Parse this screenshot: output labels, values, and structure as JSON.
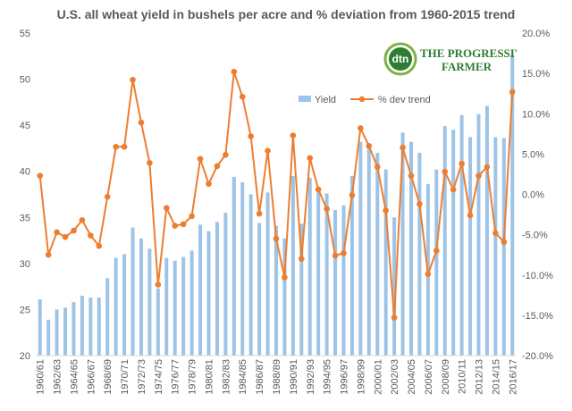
{
  "chart_data": {
    "type": "bar+line",
    "title": "U.S. all wheat yield in bushels per acre and % deviation from 1960-2015 trend",
    "categories": [
      "1960/61",
      "1961/62",
      "1962/63",
      "1963/64",
      "1964/65",
      "1965/66",
      "1966/67",
      "1967/68",
      "1968/69",
      "1969/70",
      "1970/71",
      "1971/72",
      "1972/73",
      "1973/74",
      "1974/75",
      "1975/76",
      "1976/77",
      "1977/78",
      "1978/79",
      "1979/80",
      "1980/81",
      "1981/82",
      "1982/83",
      "1983/84",
      "1984/85",
      "1985/86",
      "1986/87",
      "1987/88",
      "1988/89",
      "1989/90",
      "1990/91",
      "1991/92",
      "1992/93",
      "1993/94",
      "1994/95",
      "1995/96",
      "1996/97",
      "1997/98",
      "1998/99",
      "1999/00",
      "2000/01",
      "2001/02",
      "2002/03",
      "2003/04",
      "2004/05",
      "2005/06",
      "2006/07",
      "2007/08",
      "2008/09",
      "2009/10",
      "2010/11",
      "2011/12",
      "2012/13",
      "2013/14",
      "2014/15",
      "2015/16",
      "2016/17"
    ],
    "x_tick_labels": [
      "1960/61",
      "1962/63",
      "1964/65",
      "1966/67",
      "1968/69",
      "1970/71",
      "1972/73",
      "1974/75",
      "1976/77",
      "1978/79",
      "1980/81",
      "1982/83",
      "1984/85",
      "1986/87",
      "1988/89",
      "1990/91",
      "1992/93",
      "1994/95",
      "1996/97",
      "1998/99",
      "2000/01",
      "2002/03",
      "2004/05",
      "2006/07",
      "2008/09",
      "2010/11",
      "2012/13",
      "2014/15",
      "2016/17"
    ],
    "series": [
      {
        "name": "Yield",
        "type": "bar",
        "axis": "left",
        "color": "#9DC3E6",
        "values": [
          26.1,
          23.9,
          25.0,
          25.2,
          25.8,
          26.5,
          26.3,
          26.3,
          28.4,
          30.6,
          31.0,
          33.9,
          32.7,
          31.6,
          27.3,
          30.6,
          30.3,
          30.7,
          31.4,
          34.2,
          33.5,
          34.5,
          35.5,
          39.4,
          38.8,
          37.5,
          34.4,
          37.7,
          34.1,
          32.7,
          39.5,
          34.3,
          39.3,
          38.2,
          37.6,
          35.8,
          36.3,
          39.5,
          43.2,
          42.7,
          42.0,
          40.2,
          35.0,
          44.2,
          43.2,
          42.0,
          38.6,
          40.2,
          44.9,
          44.5,
          46.1,
          43.7,
          46.2,
          47.1,
          43.7,
          43.6,
          52.6
        ]
      },
      {
        "name": "% dev trend",
        "type": "line",
        "axis": "right",
        "color": "#ED7D31",
        "values": [
          2.3,
          -7.5,
          -4.7,
          -5.3,
          -4.5,
          -3.2,
          -5.1,
          -6.4,
          -0.3,
          5.9,
          5.9,
          14.2,
          8.9,
          3.9,
          -11.2,
          -1.7,
          -3.9,
          -3.7,
          -2.7,
          4.4,
          1.3,
          3.5,
          4.9,
          15.2,
          12.1,
          7.2,
          -2.4,
          5.4,
          -5.5,
          -10.3,
          7.3,
          -8.0,
          4.5,
          0.6,
          -1.8,
          -7.6,
          -7.3,
          -0.1,
          8.2,
          6.0,
          3.4,
          -2.0,
          -15.3,
          5.8,
          2.3,
          -1.2,
          -9.9,
          -7.0,
          2.8,
          0.6,
          3.8,
          -2.6,
          2.3,
          3.4,
          -4.8,
          -5.9,
          12.7
        ]
      }
    ],
    "y_left": {
      "min": 20,
      "max": 55,
      "step": 5
    },
    "y_right": {
      "min": -20,
      "max": 20,
      "step": 5,
      "format": "percent-1dp"
    },
    "legend": {
      "placement": "center-top",
      "entries": [
        "Yield",
        "% dev trend"
      ]
    },
    "grid": false,
    "xlabel": "",
    "ylabel": ""
  },
  "logo": {
    "badge_text": "dtn",
    "brand_top": "THE PROGRESSIVE",
    "brand_bottom": "FARMER"
  }
}
